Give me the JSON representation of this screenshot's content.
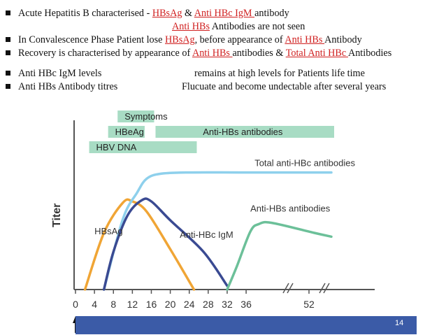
{
  "bullets": {
    "line1": {
      "a": "Acute Hepatitis B characterised  - ",
      "b": "HBsAg",
      "c": " & ",
      "d": "Anti HBc IgM ",
      "e": "antibody"
    },
    "line1b": {
      "a": "Anti HBs",
      "b": " Antibodies are not seen"
    },
    "line2": {
      "a": "In Convalescence Phase Patient lose ",
      "b": "HBsAg",
      "c": ", before appearance of ",
      "d": "Anti HBs ",
      "e": "Antibody"
    },
    "line3": {
      "a": "Recovery is characterised by appearance of ",
      "b": "Anti HBs ",
      "c": "antibodies & ",
      "d": "Total Anti HBc ",
      "e": "Antibodies"
    },
    "line4": {
      "label": "Anti HBc IgM levels",
      "value": "remains at high levels for Patients life time"
    },
    "line5": {
      "label": "Anti HBs Antibody titres",
      "value": "Flucuate and become undectable after several years"
    }
  },
  "colors": {
    "accent_red": "#d02020",
    "phase_box": "#a8dcc4",
    "hbsag": "#f0a535",
    "total_anti_hbc": "#8ed0ec",
    "anti_hbc_igm": "#3a4a92",
    "anti_hbs": "#6cc099",
    "footer": "#3b5ba7"
  },
  "chart_data": {
    "type": "line",
    "title": "",
    "xlabel": "Weeks after infection (on average)",
    "ylabel": "Titer",
    "x_ticks": [
      "0",
      "4",
      "8",
      "12",
      "16",
      "20",
      "24",
      "28",
      "32",
      "36",
      "52"
    ],
    "xlim": [
      0,
      56
    ],
    "ylim": [
      0,
      100
    ],
    "phases": [
      {
        "name": "Symptoms",
        "start": 8,
        "end": 16
      },
      {
        "name": "HBeAg",
        "start": 6,
        "end": 14
      },
      {
        "name": "Anti-HBs antibodies",
        "start": 16,
        "end": 56
      },
      {
        "name": "HBV DNA",
        "start": 2,
        "end": 25
      }
    ],
    "series": [
      {
        "name": "HBsAg",
        "points": [
          [
            2,
            0
          ],
          [
            6,
            45
          ],
          [
            10,
            69
          ],
          [
            12,
            70
          ],
          [
            15,
            62
          ],
          [
            20,
            32
          ],
          [
            25,
            0
          ]
        ]
      },
      {
        "name": "Total anti-HBc antibodies",
        "points": [
          [
            6,
            0
          ],
          [
            10,
            56
          ],
          [
            13,
            77
          ],
          [
            15,
            88
          ],
          [
            18,
            92
          ],
          [
            24,
            93
          ],
          [
            36,
            93
          ],
          [
            56,
            93
          ]
        ]
      },
      {
        "name": "Anti-HBc IgM",
        "points": [
          [
            6,
            0
          ],
          [
            8,
            30
          ],
          [
            11,
            59
          ],
          [
            14,
            71
          ],
          [
            16,
            70
          ],
          [
            20,
            55
          ],
          [
            27,
            30
          ],
          [
            32,
            3
          ]
        ]
      },
      {
        "name": "Anti-HBs antibodies",
        "points": [
          [
            32,
            0
          ],
          [
            34,
            18
          ],
          [
            37,
            46
          ],
          [
            39,
            52
          ],
          [
            42,
            53
          ],
          [
            52,
            45
          ],
          [
            56,
            42
          ]
        ]
      }
    ],
    "annotations": [
      {
        "text": "HBsAg",
        "x": 4,
        "y": 44
      },
      {
        "text": "Total anti-HBc antibodies",
        "x": 38,
        "y": 98
      },
      {
        "text": "Anti-HBc IgM",
        "x": 22,
        "y": 41
      },
      {
        "text": "Anti-HBs antibodies",
        "x": 37,
        "y": 62
      }
    ]
  },
  "footer": {
    "page_number": "14"
  }
}
